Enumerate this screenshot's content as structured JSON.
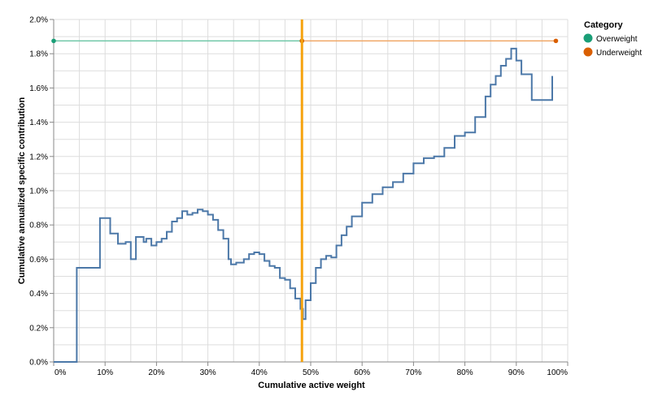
{
  "chart_data": {
    "type": "line",
    "title": "",
    "xlabel": "Cumulative active weight",
    "ylabel": "Cumulative annualized specific contribution",
    "xlim": [
      0,
      1
    ],
    "ylim": [
      0,
      0.02
    ],
    "grid": true,
    "x_tick_labels": [
      "0%",
      "10%",
      "20%",
      "30%",
      "40%",
      "50%",
      "60%",
      "70%",
      "80%",
      "90%",
      "100%"
    ],
    "y_tick_labels": [
      "0.0%",
      "0.2%",
      "0.4%",
      "0.6%",
      "0.8%",
      "1.0%",
      "1.2%",
      "1.4%",
      "1.6%",
      "1.8%",
      "2.0%"
    ],
    "legend": {
      "title": "Category",
      "placement": "top-right",
      "items": [
        {
          "label": "Overweight",
          "color": "#1a9e77"
        },
        {
          "label": "Underweight",
          "color": "#d95f02"
        }
      ]
    },
    "divider": {
      "x": 0.483,
      "color": "#f5a30f"
    },
    "category_lines": [
      {
        "name": "Overweight",
        "color": "#6fc7a8",
        "marker_color": "#1a9e77",
        "x": [
          0,
          0.483
        ],
        "y": [
          0.01875,
          0.01875
        ]
      },
      {
        "name": "Underweight",
        "color": "#f0a766",
        "marker_color": "#d95f02",
        "x": [
          0.483,
          0.977
        ],
        "y": [
          0.01875,
          0.01875
        ]
      }
    ],
    "series": [
      {
        "color": "#4c78a8",
        "step": true,
        "x": [
          0,
          0.045,
          0.09,
          0.11,
          0.125,
          0.14,
          0.15,
          0.16,
          0.175,
          0.18,
          0.19,
          0.2,
          0.21,
          0.22,
          0.23,
          0.24,
          0.25,
          0.26,
          0.27,
          0.28,
          0.29,
          0.3,
          0.31,
          0.32,
          0.33,
          0.34,
          0.345,
          0.355,
          0.37,
          0.38,
          0.39,
          0.4,
          0.41,
          0.42,
          0.43,
          0.44,
          0.45,
          0.46,
          0.47,
          0.48,
          0.485,
          0.49,
          0.5,
          0.51,
          0.52,
          0.53,
          0.54,
          0.55,
          0.56,
          0.57,
          0.58,
          0.6,
          0.62,
          0.64,
          0.66,
          0.68,
          0.7,
          0.72,
          0.74,
          0.76,
          0.78,
          0.8,
          0.82,
          0.84,
          0.85,
          0.86,
          0.87,
          0.88,
          0.89,
          0.9,
          0.91,
          0.93,
          0.97
        ],
        "y": [
          0,
          0.0055,
          0.0084,
          0.0075,
          0.0069,
          0.007,
          0.006,
          0.0073,
          0.007,
          0.0072,
          0.0068,
          0.007,
          0.0072,
          0.0076,
          0.0082,
          0.0084,
          0.0088,
          0.0086,
          0.0087,
          0.0089,
          0.0088,
          0.0086,
          0.0083,
          0.0077,
          0.0072,
          0.006,
          0.0057,
          0.0058,
          0.006,
          0.0063,
          0.0064,
          0.0063,
          0.0059,
          0.0056,
          0.0055,
          0.0049,
          0.0048,
          0.0043,
          0.0037,
          0.0031,
          0.0025,
          0.0036,
          0.0046,
          0.0055,
          0.006,
          0.0062,
          0.0061,
          0.0068,
          0.0074,
          0.0079,
          0.0085,
          0.0093,
          0.0098,
          0.0102,
          0.0105,
          0.011,
          0.0116,
          0.0119,
          0.012,
          0.0125,
          0.0132,
          0.0134,
          0.0143,
          0.0155,
          0.0162,
          0.0167,
          0.0173,
          0.0177,
          0.0183,
          0.0176,
          0.0168,
          0.0153,
          0.0167
        ]
      }
    ]
  }
}
